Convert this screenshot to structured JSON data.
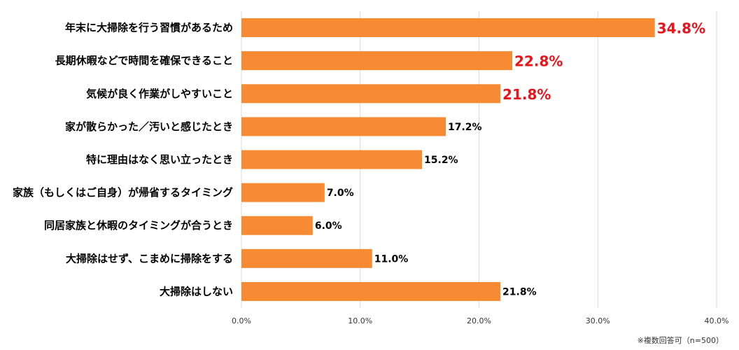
{
  "chart_data": {
    "type": "bar",
    "orientation": "horizontal",
    "categories": [
      "年末に大掃除を行う習慣があるため",
      "長期休暇などで時間を確保できること",
      "気候が良く作業がしやすいこと",
      "家が散らかった／汚いと感じたとき",
      "特に理由はなく思い立ったとき",
      "家族（もしくはご自身）が帰省するタイミング",
      "同居家族と休暇のタイミングが合うとき",
      "大掃除はせず、こまめに掃除をする",
      "大掃除はしない"
    ],
    "values": [
      34.8,
      22.8,
      21.8,
      17.2,
      15.2,
      7.0,
      6.0,
      11.0,
      21.8
    ],
    "value_labels": [
      "34.8%",
      "22.8%",
      "21.8%",
      "17.2%",
      "15.2%",
      "7.0%",
      "6.0%",
      "11.0%",
      "21.8%"
    ],
    "highlighted_labels": [
      true,
      true,
      true,
      false,
      false,
      false,
      false,
      false,
      false
    ],
    "xlim": [
      0,
      40
    ],
    "x_ticks": [
      0,
      10,
      20,
      30,
      40
    ],
    "x_tick_labels": [
      "0.0%",
      "10.0%",
      "20.0%",
      "30.0%",
      "40.0%"
    ],
    "grid": true,
    "title": "",
    "xlabel": "",
    "ylabel": ""
  },
  "colors": {
    "bar": "#f68b33",
    "highlight_label": "#e8141c",
    "label": "#000000",
    "grid": "#d9d9d9"
  },
  "footnote": "※複数回答可（n=500）"
}
